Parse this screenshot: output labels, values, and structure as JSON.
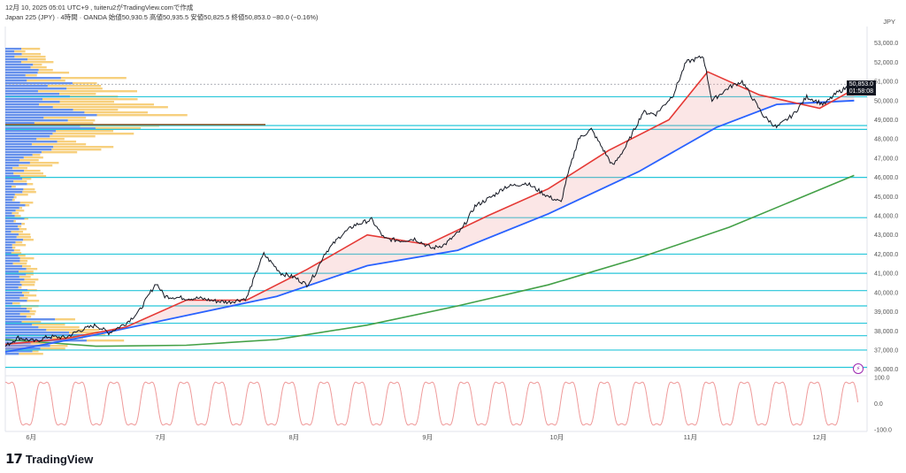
{
  "header": {
    "timestamp": "12月 10, 2025 05:01 UTC+9",
    "author": "tuiteru2がTradingView.comで作成",
    "symbol": "Japan 225 (JPY) · 4時間 · OANDA",
    "ohlc": "始値50,930.5 高値50,935.5 安値50,825.5 終値50,853.0 −80.0 (−0.16%)"
  },
  "currency": "JPY",
  "last_price": "50,853.0",
  "countdown": "01:58:08",
  "brand": {
    "logo": "17",
    "name": "TradingView"
  },
  "alert_icon": "lightning-icon",
  "colors": {
    "fast_ma": "#e53935",
    "slow_ma": "#2962ff",
    "long_ma": "#43a047",
    "price": "#131722",
    "hline": "#26c6da",
    "vp_up": "#4c7ee8",
    "vp_down": "#f5c45e",
    "poc": "#8b5a2b",
    "osc": "#ef9a9a",
    "alert": "#9c27b0"
  },
  "chart_data": {
    "type": "line",
    "x_ticks": [
      "6月",
      "7月",
      "8月",
      "9月",
      "10月",
      "11月",
      "12月"
    ],
    "y_ticks": [
      "53,000.0",
      "52,000.0",
      "51,000.0",
      "50,000.0",
      "49,000.0",
      "48,000.0",
      "47,000.0",
      "46,000.0",
      "45,000.0",
      "44,000.0",
      "43,000.0",
      "42,000.0",
      "41,000.0",
      "40,000.0",
      "39,000.0",
      "38,000.0",
      "37,000.0",
      "36,000.0"
    ],
    "ylim": [
      35800,
      53400
    ],
    "osc_ticks": [
      "100.0",
      "0.0",
      "-100.0"
    ],
    "osc_range": [
      -100,
      100
    ],
    "xlim": [
      "2025-05-26",
      "2025-12-12"
    ],
    "price_series": [
      [
        "2025-05-26",
        37200
      ],
      [
        "2025-05-29",
        37650
      ],
      [
        "2025-06-02",
        37450
      ],
      [
        "2025-06-05",
        37700
      ],
      [
        "2025-06-09",
        37650
      ],
      [
        "2025-06-12",
        38000
      ],
      [
        "2025-06-16",
        38300
      ],
      [
        "2025-06-19",
        37900
      ],
      [
        "2025-06-23",
        38400
      ],
      [
        "2025-06-26",
        39000
      ],
      [
        "2025-06-30",
        40500
      ],
      [
        "2025-07-02",
        39800
      ],
      [
        "2025-07-07",
        39700
      ],
      [
        "2025-07-10",
        39700
      ],
      [
        "2025-07-14",
        39550
      ],
      [
        "2025-07-17",
        39500
      ],
      [
        "2025-07-21",
        39700
      ],
      [
        "2025-07-24",
        41500
      ],
      [
        "2025-07-25",
        42000
      ],
      [
        "2025-07-29",
        41000
      ],
      [
        "2025-08-01",
        40800
      ],
      [
        "2025-08-04",
        40400
      ],
      [
        "2025-08-06",
        41000
      ],
      [
        "2025-08-08",
        42000
      ],
      [
        "2025-08-12",
        43000
      ],
      [
        "2025-08-15",
        43500
      ],
      [
        "2025-08-19",
        43800
      ],
      [
        "2025-08-22",
        42800
      ],
      [
        "2025-08-26",
        42700
      ],
      [
        "2025-08-29",
        42800
      ],
      [
        "2025-09-02",
        42300
      ],
      [
        "2025-09-05",
        42500
      ],
      [
        "2025-09-09",
        43300
      ],
      [
        "2025-09-12",
        44500
      ],
      [
        "2025-09-16",
        45000
      ],
      [
        "2025-09-19",
        45500
      ],
      [
        "2025-09-24",
        45700
      ],
      [
        "2025-09-29",
        45000
      ],
      [
        "2025-10-02",
        44700
      ],
      [
        "2025-10-03",
        45700
      ],
      [
        "2025-10-06",
        48000
      ],
      [
        "2025-10-09",
        48500
      ],
      [
        "2025-10-14",
        46600
      ],
      [
        "2025-10-17",
        47600
      ],
      [
        "2025-10-21",
        49400
      ],
      [
        "2025-10-24",
        49300
      ],
      [
        "2025-10-28",
        50300
      ],
      [
        "2025-10-31",
        52000
      ],
      [
        "2025-11-04",
        52300
      ],
      [
        "2025-11-06",
        50000
      ],
      [
        "2025-11-10",
        50700
      ],
      [
        "2025-11-13",
        51000
      ],
      [
        "2025-11-18",
        49200
      ],
      [
        "2025-11-21",
        48600
      ],
      [
        "2025-11-25",
        49300
      ],
      [
        "2025-11-28",
        50200
      ],
      [
        "2025-12-02",
        49800
      ],
      [
        "2025-12-05",
        50400
      ],
      [
        "2025-12-09",
        50900
      ]
    ],
    "fast_ma": [
      [
        "2025-05-26",
        37300
      ],
      [
        "2025-06-09",
        37600
      ],
      [
        "2025-06-23",
        38200
      ],
      [
        "2025-07-07",
        39600
      ],
      [
        "2025-07-21",
        39600
      ],
      [
        "2025-08-04",
        41200
      ],
      [
        "2025-08-18",
        43000
      ],
      [
        "2025-09-01",
        42500
      ],
      [
        "2025-09-15",
        44000
      ],
      [
        "2025-09-29",
        45400
      ],
      [
        "2025-10-13",
        47400
      ],
      [
        "2025-10-27",
        49000
      ],
      [
        "2025-11-05",
        51500
      ],
      [
        "2025-11-17",
        50300
      ],
      [
        "2025-12-01",
        49600
      ],
      [
        "2025-12-09",
        50600
      ]
    ],
    "slow_ma": [
      [
        "2025-05-26",
        36900
      ],
      [
        "2025-06-16",
        37800
      ],
      [
        "2025-07-07",
        38800
      ],
      [
        "2025-07-28",
        39800
      ],
      [
        "2025-08-18",
        41400
      ],
      [
        "2025-09-08",
        42200
      ],
      [
        "2025-09-29",
        44100
      ],
      [
        "2025-10-20",
        46300
      ],
      [
        "2025-11-07",
        48600
      ],
      [
        "2025-11-21",
        49800
      ],
      [
        "2025-12-09",
        50000
      ]
    ],
    "long_ma": [
      [
        "2025-05-26",
        37550
      ],
      [
        "2025-06-16",
        37200
      ],
      [
        "2025-07-07",
        37250
      ],
      [
        "2025-07-28",
        37550
      ],
      [
        "2025-08-18",
        38300
      ],
      [
        "2025-09-08",
        39300
      ],
      [
        "2025-09-29",
        40400
      ],
      [
        "2025-10-20",
        41800
      ],
      [
        "2025-11-10",
        43400
      ],
      [
        "2025-12-09",
        46100
      ]
    ],
    "horizontal_levels": [
      50200,
      48700,
      48500,
      46000,
      43900,
      42000,
      41000,
      40100,
      39300,
      38400,
      37750,
      37000,
      36100
    ],
    "poc_level": 48750
  }
}
